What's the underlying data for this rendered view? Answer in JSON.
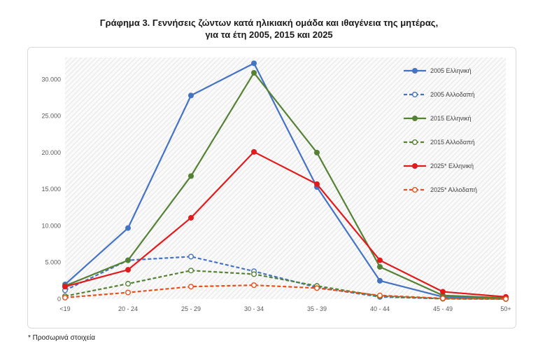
{
  "title_line1": "Γράφημα 3. Γεννήσεις ζώντων κατά ηλικιακή ομάδα και ιθαγένεια της μητέρας,",
  "title_line2": "για τα έτη 2005, 2015 και 2025",
  "footnote": "* Προσωρινά στοιχεία",
  "chart_data": {
    "type": "line",
    "title": "Γράφημα 3. Γεννήσεις ζώντων κατά ηλικιακή ομάδα και ιθαγένεια της μητέρας, για τα έτη 2005, 2015 και 2025",
    "xlabel": "",
    "ylabel": "",
    "categories": [
      "<19",
      "20 - 24",
      "25 - 29",
      "30 - 34",
      "35 - 39",
      "40 - 44",
      "45 - 49",
      "50+"
    ],
    "ylim": [
      0,
      33000
    ],
    "yticks": [
      0,
      5000,
      10000,
      15000,
      20000,
      25000,
      30000
    ],
    "ytick_labels": [
      "0",
      "5.000",
      "10.000",
      "15.000",
      "20.000",
      "25.000",
      "30.000"
    ],
    "grid": false,
    "legend_position": "right",
    "series": [
      {
        "name": "2005 Ελληνική",
        "color": "#4472c4",
        "dashed": false,
        "filled": true,
        "values": [
          2000,
          9700,
          27800,
          32200,
          15300,
          2500,
          300,
          100
        ]
      },
      {
        "name": "2005 Αλλοδαπή",
        "color": "#4472c4",
        "dashed": true,
        "filled": false,
        "values": [
          1200,
          5300,
          5800,
          3800,
          1600,
          300,
          50,
          10
        ]
      },
      {
        "name": "2015 Ελληνική",
        "color": "#548235",
        "dashed": false,
        "filled": true,
        "values": [
          1800,
          5300,
          16800,
          30900,
          20000,
          4400,
          500,
          150
        ]
      },
      {
        "name": "2015 Αλλοδαπή",
        "color": "#548235",
        "dashed": true,
        "filled": false,
        "values": [
          400,
          2100,
          3900,
          3400,
          1800,
          400,
          50,
          10
        ]
      },
      {
        "name": "2025* Ελληνική",
        "color": "#e31a1c",
        "dashed": false,
        "filled": true,
        "values": [
          1700,
          4000,
          11100,
          20100,
          15700,
          5300,
          1000,
          300
        ]
      },
      {
        "name": "2025* Αλλοδαπή",
        "color": "#e8501a",
        "dashed": true,
        "filled": false,
        "values": [
          200,
          900,
          1700,
          1900,
          1500,
          500,
          100,
          20
        ]
      }
    ]
  }
}
